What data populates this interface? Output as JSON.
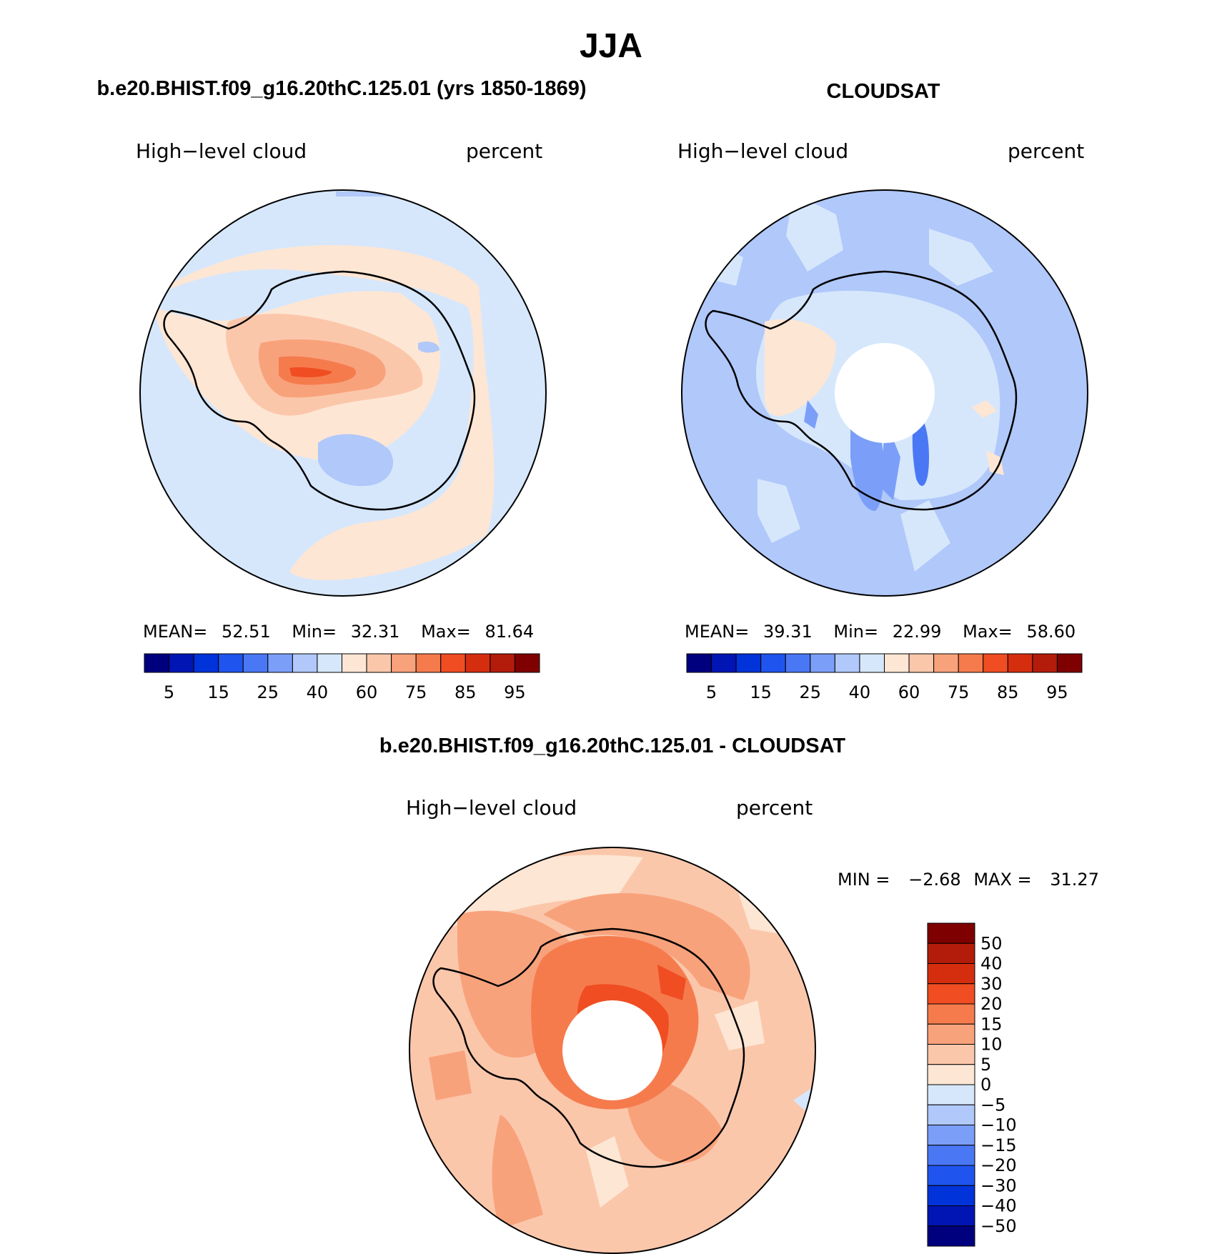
{
  "main_title": "JJA",
  "variable": "High−level cloud",
  "units": "percent",
  "panels": {
    "model": {
      "title": "b.e20.BHIST.f09_g16.20thC.125.01 (yrs 1850-1869)",
      "stats": {
        "mean_label": "MEAN=",
        "mean": "52.51",
        "min_label": "Min=",
        "min": "32.31",
        "max_label": "Max=",
        "max": "81.64"
      }
    },
    "obs": {
      "title": "CLOUDSAT",
      "stats": {
        "mean_label": "MEAN=",
        "mean": "39.31",
        "min_label": "Min=",
        "min": "22.99",
        "max_label": "Max=",
        "max": "58.60"
      }
    },
    "diff": {
      "title": "b.e20.BHIST.f09_g16.20thC.125.01 - CLOUDSAT",
      "stats": {
        "min_label": "MIN =",
        "min": "−2.68",
        "max_label": "MAX =",
        "max": "31.27"
      }
    }
  },
  "colorbar_abs": {
    "colors": [
      "#00007f",
      "#0015b4",
      "#0033d9",
      "#1f55ee",
      "#4a78f5",
      "#7b9ff8",
      "#b0c8fa",
      "#d6e7fc",
      "#fde6d4",
      "#fbc7ab",
      "#f8a27c",
      "#f57b4d",
      "#f04d22",
      "#d52e0f",
      "#b31c0a",
      "#7f0000"
    ],
    "labels": [
      "5",
      "15",
      "25",
      "40",
      "60",
      "75",
      "85",
      "95"
    ]
  },
  "colorbar_diff": {
    "colors": [
      "#7f0000",
      "#b31c0a",
      "#d52e0f",
      "#f04d22",
      "#f57b4d",
      "#f8a27c",
      "#fbc7ab",
      "#fde6d4",
      "#d6e7fc",
      "#b0c8fa",
      "#7b9ff8",
      "#4a78f5",
      "#1f55ee",
      "#0033d9",
      "#0015b4",
      "#00007f"
    ],
    "labels": [
      "50",
      "40",
      "30",
      "20",
      "15",
      "10",
      "5",
      "0",
      "−5",
      "−10",
      "−15",
      "−20",
      "−30",
      "−40",
      "−50"
    ]
  }
}
